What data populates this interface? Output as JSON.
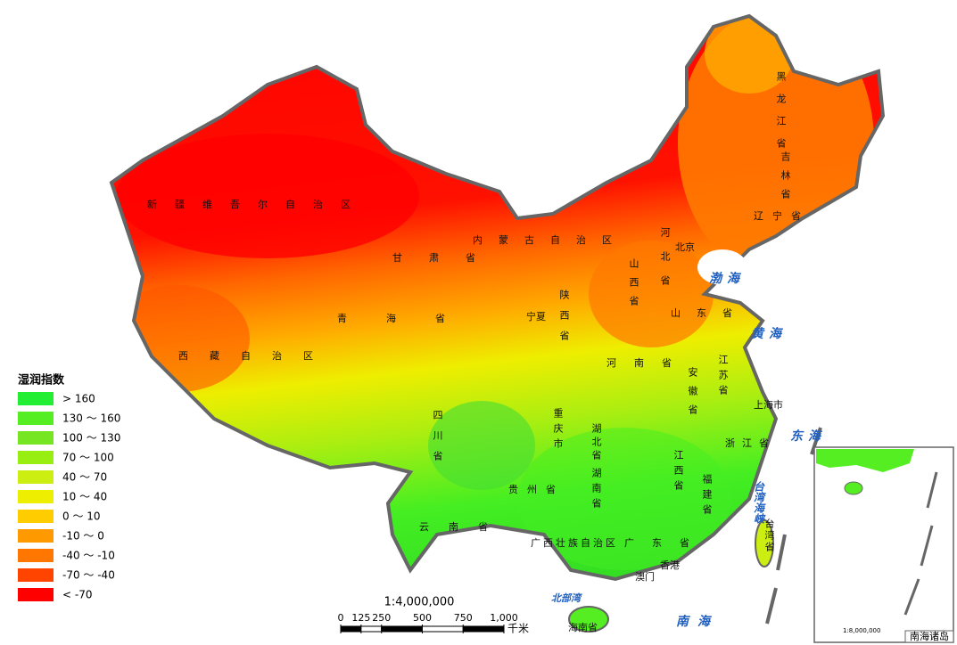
{
  "legend": {
    "title": "湿润指数",
    "items": [
      {
        "label": "> 160",
        "color": "#22ee33"
      },
      {
        "label": "130 ～ 160",
        "color": "#55ee22"
      },
      {
        "label": "100 ～ 130",
        "color": "#77e622"
      },
      {
        "label": "70 ～ 100",
        "color": "#99ee11"
      },
      {
        "label": "40 ～ 70",
        "color": "#ccee11"
      },
      {
        "label": "10 ～ 40",
        "color": "#eeee00"
      },
      {
        "label": "0 ～ 10",
        "color": "#ffcc00"
      },
      {
        "label": "-10 ～ 0",
        "color": "#ff9900"
      },
      {
        "label": "-40 ～ -10",
        "color": "#ff7700"
      },
      {
        "label": "-70 ～ -40",
        "color": "#ff4400"
      },
      {
        "label": "< -70",
        "color": "#ff0000"
      }
    ]
  },
  "scale": {
    "ratio": "1:4,000,000",
    "ticks": [
      0,
      125,
      250,
      500,
      750,
      {
        "value": 1000,
        "label": "1,000"
      }
    ],
    "unit": "千米"
  },
  "labels": {
    "provinces": [
      "新疆维吾尔自治区",
      "西藏自治区",
      "青海省",
      "甘肃省",
      "内蒙古自治区",
      "黑龙江省",
      "吉林省",
      "辽宁省",
      "河北省",
      "北京",
      "山西省",
      "山东省",
      "陕西省",
      "宁夏",
      "河南省",
      "江苏省",
      "安徽省",
      "上海市",
      "浙江省",
      "四川省",
      "重庆市",
      "湖北省",
      "湖南省",
      "江西省",
      "福建省",
      "台湾省",
      "贵州省",
      "云南省",
      "广西壮族自治区",
      "广东省",
      "香港",
      "澳门",
      "海南省"
    ],
    "seas": [
      "渤海",
      "黄海",
      "东海",
      "台湾海峡",
      "南海",
      "北部湾"
    ]
  },
  "inset": {
    "title": "南海诸岛",
    "ratio": "1:8,000,000"
  }
}
